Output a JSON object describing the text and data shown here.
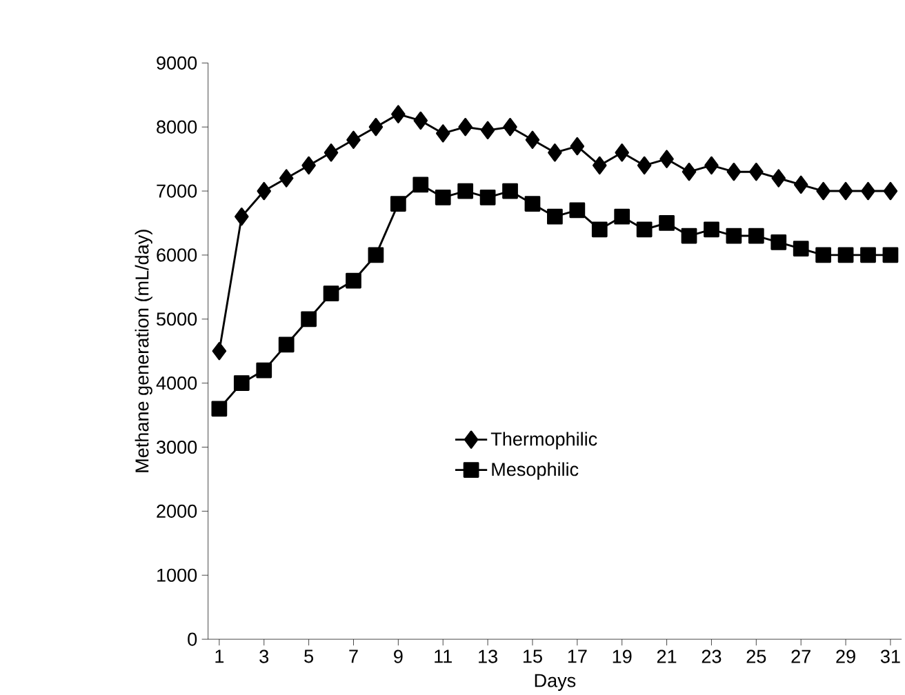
{
  "chart_data": {
    "type": "line",
    "xlabel": "Days",
    "ylabel": "Methane generation (mL/day)",
    "categories": [
      "1",
      null,
      "3",
      null,
      "5",
      null,
      "7",
      null,
      "9",
      null,
      "11",
      null,
      "13",
      null,
      "15",
      null,
      "17",
      null,
      "19",
      null,
      "21",
      null,
      "23",
      null,
      "25",
      null,
      "27",
      null,
      "29",
      null,
      "31"
    ],
    "ylim": [
      0,
      9000
    ],
    "yticks": [
      0,
      1000,
      2000,
      3000,
      4000,
      5000,
      6000,
      7000,
      8000,
      9000
    ],
    "grid": false,
    "legend": "center",
    "line_style": "solid",
    "series": [
      {
        "name": "Thermophilic",
        "color": "#000000",
        "marker": "diamond",
        "values": [
          4500,
          6600,
          7000,
          7200,
          7400,
          7600,
          7800,
          8000,
          8200,
          8100,
          7900,
          8000,
          7950,
          8000,
          7800,
          7600,
          7700,
          7400,
          7600,
          7400,
          7500,
          7300,
          7400,
          7300,
          7300,
          7200,
          7100,
          7000,
          7000,
          7000,
          7000
        ]
      },
      {
        "name": "Mesophilic",
        "color": "#000000",
        "marker": "square",
        "values": [
          3600,
          4000,
          4200,
          4600,
          5000,
          5400,
          5600,
          6000,
          6800,
          7100,
          6900,
          7000,
          6900,
          7000,
          6800,
          6600,
          6700,
          6400,
          6600,
          6400,
          6500,
          6300,
          6400,
          6300,
          6300,
          6200,
          6100,
          6000,
          6000,
          6000,
          6000
        ]
      }
    ]
  }
}
